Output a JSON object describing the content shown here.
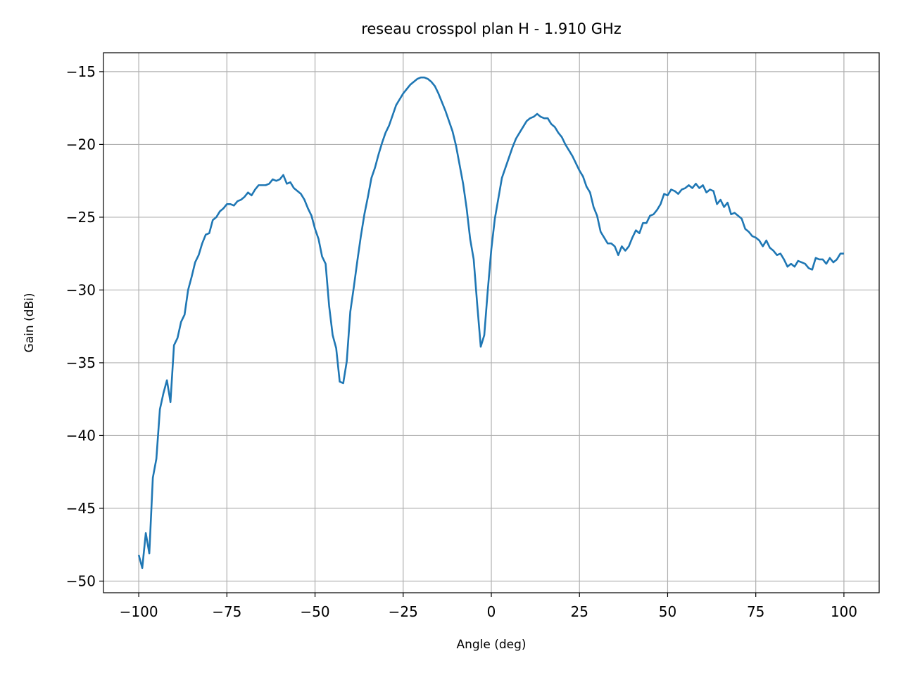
{
  "chart_data": {
    "type": "line",
    "title": "reseau crosspol plan H - 1.910 GHz",
    "xlabel": "Angle (deg)",
    "ylabel": "Gain (dBi)",
    "x": [
      -100,
      -99,
      -98,
      -97,
      -96,
      -95,
      -94,
      -93,
      -92,
      -91,
      -90,
      -89,
      -88,
      -87,
      -86,
      -85,
      -84,
      -83,
      -82,
      -81,
      -80,
      -79,
      -78,
      -77,
      -76,
      -75,
      -74,
      -73,
      -72,
      -71,
      -70,
      -69,
      -68,
      -67,
      -66,
      -65,
      -64,
      -63,
      -62,
      -61,
      -60,
      -59,
      -58,
      -57,
      -56,
      -55,
      -54,
      -53,
      -52,
      -51,
      -50,
      -49,
      -48,
      -47,
      -46,
      -45,
      -44,
      -43,
      -42,
      -41,
      -40,
      -39,
      -38,
      -37,
      -36,
      -35,
      -34,
      -33,
      -32,
      -31,
      -30,
      -29,
      -28,
      -27,
      -26,
      -25,
      -24,
      -23,
      -22,
      -21,
      -20,
      -19,
      -18,
      -17,
      -16,
      -15,
      -14,
      -13,
      -12,
      -11,
      -10,
      -9,
      -8,
      -7,
      -6,
      -5,
      -4,
      -3,
      -2,
      -1,
      0,
      1,
      2,
      3,
      4,
      5,
      6,
      7,
      8,
      9,
      10,
      11,
      12,
      13,
      14,
      15,
      16,
      17,
      18,
      19,
      20,
      21,
      22,
      23,
      24,
      25,
      26,
      27,
      28,
      29,
      30,
      31,
      32,
      33,
      34,
      35,
      36,
      37,
      38,
      39,
      40,
      41,
      42,
      43,
      44,
      45,
      46,
      47,
      48,
      49,
      50,
      51,
      52,
      53,
      54,
      55,
      56,
      57,
      58,
      59,
      60,
      61,
      62,
      63,
      64,
      65,
      66,
      67,
      68,
      69,
      70,
      71,
      72,
      73,
      74,
      75,
      76,
      77,
      78,
      79,
      80,
      81,
      82,
      83,
      84,
      85,
      86,
      87,
      88,
      89,
      90,
      91,
      92,
      93,
      94,
      95,
      96,
      97,
      98,
      99,
      100
    ],
    "series": [
      {
        "color": "#1f77b4",
        "values": [
          -48.2,
          -49.1,
          -46.7,
          -48.1,
          -42.9,
          -41.6,
          -38.2,
          -37.1,
          -36.2,
          -37.7,
          -33.8,
          -33.3,
          -32.2,
          -31.7,
          -30.0,
          -29.1,
          -28.1,
          -27.6,
          -26.8,
          -26.2,
          -26.1,
          -25.2,
          -25.0,
          -24.6,
          -24.4,
          -24.1,
          -24.1,
          -24.2,
          -23.9,
          -23.8,
          -23.6,
          -23.3,
          -23.5,
          -23.1,
          -22.8,
          -22.8,
          -22.8,
          -22.7,
          -22.4,
          -22.5,
          -22.4,
          -22.1,
          -22.7,
          -22.6,
          -23.0,
          -23.2,
          -23.4,
          -23.8,
          -24.4,
          -24.9,
          -25.8,
          -26.5,
          -27.7,
          -28.2,
          -31.1,
          -33.1,
          -34.0,
          -36.3,
          -36.4,
          -34.9,
          -31.5,
          -29.8,
          -28.0,
          -26.3,
          -24.8,
          -23.6,
          -22.3,
          -21.6,
          -20.7,
          -19.9,
          -19.2,
          -18.7,
          -18.0,
          -17.3,
          -16.9,
          -16.5,
          -16.2,
          -15.9,
          -15.7,
          -15.5,
          -15.4,
          -15.4,
          -15.5,
          -15.7,
          -16.0,
          -16.5,
          -17.1,
          -17.7,
          -18.4,
          -19.1,
          -20.1,
          -21.4,
          -22.7,
          -24.4,
          -26.5,
          -27.9,
          -31.0,
          -33.9,
          -33.1,
          -30.0,
          -27.2,
          -25.1,
          -23.7,
          -22.3,
          -21.6,
          -20.9,
          -20.2,
          -19.6,
          -19.2,
          -18.8,
          -18.4,
          -18.2,
          -18.1,
          -17.9,
          -18.1,
          -18.2,
          -18.2,
          -18.6,
          -18.8,
          -19.2,
          -19.5,
          -20.0,
          -20.4,
          -20.8,
          -21.3,
          -21.8,
          -22.2,
          -22.9,
          -23.3,
          -24.3,
          -24.9,
          -26.0,
          -26.4,
          -26.8,
          -26.8,
          -27.0,
          -27.6,
          -27.0,
          -27.3,
          -27.0,
          -26.4,
          -25.9,
          -26.1,
          -25.4,
          -25.4,
          -24.9,
          -24.8,
          -24.5,
          -24.1,
          -23.4,
          -23.5,
          -23.1,
          -23.2,
          -23.4,
          -23.1,
          -23.0,
          -22.8,
          -23.0,
          -22.7,
          -23.0,
          -22.8,
          -23.3,
          -23.1,
          -23.2,
          -24.1,
          -23.8,
          -24.3,
          -24.0,
          -24.8,
          -24.7,
          -24.9,
          -25.1,
          -25.8,
          -26.0,
          -26.3,
          -26.4,
          -26.6,
          -27.0,
          -26.6,
          -27.1,
          -27.3,
          -27.6,
          -27.5,
          -27.9,
          -28.4,
          -28.2,
          -28.4,
          -28.0,
          -28.1,
          -28.2,
          -28.5,
          -28.6,
          -27.8,
          -27.9,
          -27.9,
          -28.2,
          -27.8,
          -28.1,
          -27.9,
          -27.5,
          -27.5
        ]
      }
    ],
    "xlim": [
      -110,
      110
    ],
    "xticks": [
      {
        "value": -100,
        "label": "−100"
      },
      {
        "value": -75,
        "label": "−75"
      },
      {
        "value": -50,
        "label": "−50"
      },
      {
        "value": -25,
        "label": "−25"
      },
      0,
      25,
      50,
      75,
      100
    ],
    "ylim": [
      -50.8,
      -13.7
    ],
    "yticks": [
      {
        "value": -50,
        "label": "−50"
      },
      {
        "value": -45,
        "label": "−45"
      },
      {
        "value": -40,
        "label": "−40"
      },
      {
        "value": -35,
        "label": "−35"
      },
      {
        "value": -30,
        "label": "−30"
      },
      {
        "value": -25,
        "label": "−25"
      },
      {
        "value": -20,
        "label": "−20"
      },
      {
        "value": -15,
        "label": "−15"
      }
    ],
    "grid": true
  }
}
